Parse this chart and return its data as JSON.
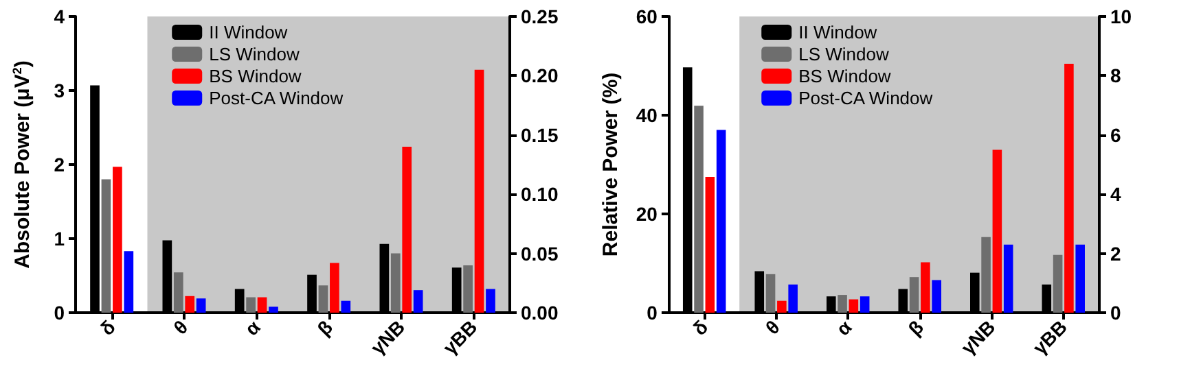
{
  "chart_data": [
    {
      "type": "bar",
      "ylabel": "Absolute Power (μV$^{2}$)",
      "categories": [
        "δ",
        "θ",
        "α",
        "β",
        "γNB",
        "γBB"
      ],
      "ylim": [
        0,
        4
      ],
      "yticks": [
        0,
        1,
        2,
        3,
        4
      ],
      "y2lim": [
        0,
        0.25
      ],
      "y2ticks": [
        {
          "value": 0,
          "label": "0.00"
        },
        {
          "value": 0.05,
          "label": "0.05"
        },
        {
          "value": 0.1,
          "label": "0.10"
        },
        {
          "value": 0.15,
          "label": "0.15"
        },
        {
          "value": 0.2,
          "label": "0.20"
        },
        {
          "value": 0.25,
          "label": "0.25"
        }
      ],
      "grid": false,
      "legend": "top left",
      "bands": [
        {
          "axis": "x",
          "from": "θ",
          "to": "γBB",
          "color": "#c8c8c8"
        }
      ],
      "series": [
        {
          "name": "II Window",
          "color": "#000000",
          "values": [
            3.07,
            null,
            null,
            null,
            null,
            null
          ]
        },
        {
          "name": "LS Window",
          "color": "#6e6e6e",
          "values": [
            1.8,
            null,
            null,
            null,
            null,
            null
          ]
        },
        {
          "name": "BS Window",
          "color": "#ff0000",
          "values": [
            1.97,
            null,
            null,
            null,
            null,
            null
          ]
        },
        {
          "name": "Post-CA Window",
          "color": "#0000ff",
          "values": [
            0.83,
            null,
            null,
            null,
            null,
            null
          ]
        },
        {
          "color": "#000000",
          "axis": "y2",
          "values": [
            null,
            0.061,
            0.02,
            0.032,
            0.058,
            0.038
          ]
        },
        {
          "color": "#6e6e6e",
          "axis": "y2",
          "values": [
            null,
            0.034,
            0.013,
            0.023,
            0.05,
            0.04
          ]
        },
        {
          "color": "#ff0000",
          "axis": "y2",
          "values": [
            null,
            0.014,
            0.013,
            0.042,
            0.14,
            0.205
          ]
        },
        {
          "color": "#0000ff",
          "axis": "y2",
          "values": [
            null,
            0.012,
            0.005,
            0.01,
            0.019,
            0.02
          ]
        }
      ]
    },
    {
      "type": "bar",
      "ylabel": "Relative Power (%)",
      "categories": [
        "δ",
        "θ",
        "α",
        "β",
        "γNB",
        "γBB"
      ],
      "ylim": [
        0,
        60
      ],
      "yticks": [
        0,
        20,
        40,
        60
      ],
      "y2lim": [
        0,
        10
      ],
      "y2ticks": [
        0,
        2,
        4,
        6,
        8,
        10
      ],
      "grid": false,
      "legend": "top left",
      "bands": [
        {
          "axis": "x",
          "from": "θ",
          "to": "γBB",
          "color": "#c8c8c8"
        }
      ],
      "series": [
        {
          "name": "II Window",
          "color": "#000000",
          "values": [
            49.7,
            null,
            null,
            null,
            null,
            null
          ]
        },
        {
          "name": "LS Window",
          "color": "#6e6e6e",
          "values": [
            41.9,
            null,
            null,
            null,
            null,
            null
          ]
        },
        {
          "name": "BS Window",
          "color": "#ff0000",
          "values": [
            27.5,
            null,
            null,
            null,
            null,
            null
          ]
        },
        {
          "name": "Post-CA Window",
          "color": "#0000ff",
          "values": [
            37,
            null,
            null,
            null,
            null,
            null
          ]
        },
        {
          "color": "#000000",
          "axis": "y2",
          "values": [
            null,
            1.4,
            0.55,
            0.8,
            1.35,
            0.95
          ]
        },
        {
          "color": "#6e6e6e",
          "axis": "y2",
          "values": [
            null,
            1.3,
            0.6,
            1.2,
            2.55,
            1.95
          ]
        },
        {
          "color": "#ff0000",
          "axis": "y2",
          "values": [
            null,
            0.4,
            0.45,
            1.7,
            5.5,
            8.4
          ]
        },
        {
          "color": "#0000ff",
          "axis": "y2",
          "values": [
            null,
            0.95,
            0.55,
            1.1,
            2.3,
            2.3
          ]
        }
      ]
    }
  ]
}
